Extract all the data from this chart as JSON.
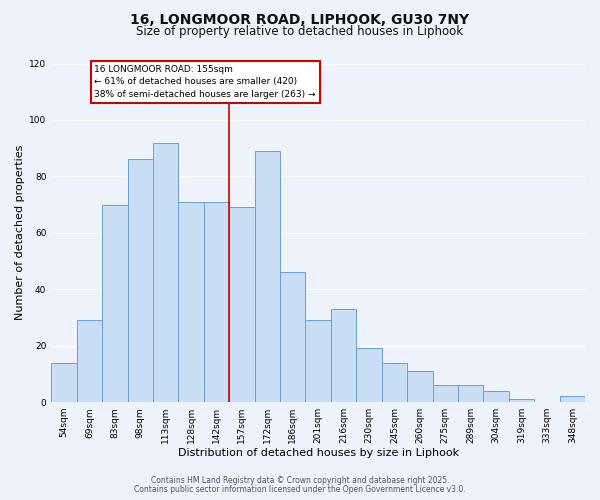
{
  "title": "16, LONGMOOR ROAD, LIPHOOK, GU30 7NY",
  "subtitle": "Size of property relative to detached houses in Liphook",
  "xlabel": "Distribution of detached houses by size in Liphook",
  "ylabel": "Number of detached properties",
  "bar_labels": [
    "54sqm",
    "69sqm",
    "83sqm",
    "98sqm",
    "113sqm",
    "128sqm",
    "142sqm",
    "157sqm",
    "172sqm",
    "186sqm",
    "201sqm",
    "216sqm",
    "230sqm",
    "245sqm",
    "260sqm",
    "275sqm",
    "289sqm",
    "304sqm",
    "319sqm",
    "333sqm",
    "348sqm"
  ],
  "bar_heights": [
    14,
    29,
    70,
    86,
    92,
    71,
    71,
    69,
    89,
    46,
    29,
    33,
    19,
    14,
    11,
    6,
    6,
    4,
    1,
    0,
    2
  ],
  "bar_color": "#c9ddf5",
  "bar_edge_color": "#6b9fd4",
  "vline_color": "#cc0000",
  "vline_idx": 7,
  "ylim": [
    0,
    120
  ],
  "yticks": [
    0,
    20,
    40,
    60,
    80,
    100,
    120
  ],
  "annotation_title": "16 LONGMOOR ROAD: 155sqm",
  "annotation_line1": "← 61% of detached houses are smaller (420)",
  "annotation_line2": "38% of semi-detached houses are larger (263) →",
  "annotation_box_facecolor": "#ffffff",
  "annotation_box_edgecolor": "#cc0000",
  "footer1": "Contains HM Land Registry data © Crown copyright and database right 2025.",
  "footer2": "Contains public sector information licensed under the Open Government Licence v3.0.",
  "background_color": "#edf2fb",
  "grid_color": "#ffffff",
  "title_fontsize": 10,
  "subtitle_fontsize": 8.5,
  "axis_label_fontsize": 8,
  "tick_fontsize": 6.5,
  "annot_fontsize": 6.5,
  "footer_fontsize": 5.5
}
